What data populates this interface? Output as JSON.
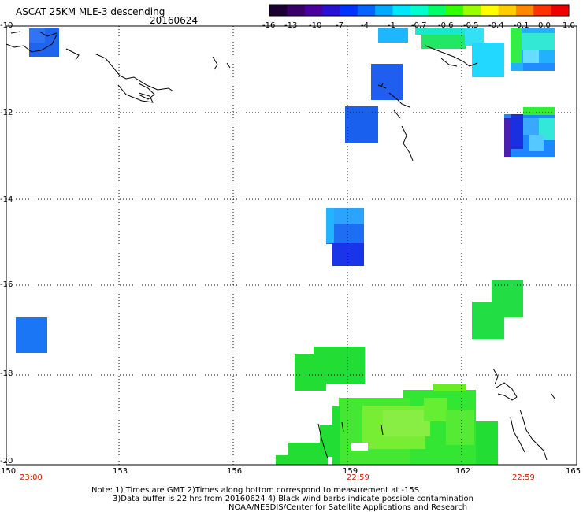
{
  "header": {
    "title": "ASCAT 25KM MLE-3 descending",
    "date": "20160624"
  },
  "colorbar": {
    "labels": [
      "-16",
      "-13",
      "-10",
      "-7",
      "-4",
      "-1",
      "-0.7",
      "-0.6",
      "-0.5",
      "-0.4",
      "-0.1",
      "0.0",
      "1.0"
    ],
    "colors": [
      "#1a0033",
      "#3a006a",
      "#4b00a0",
      "#2a10d0",
      "#0033ff",
      "#0066ff",
      "#00aaff",
      "#00e6ff",
      "#00ffcc",
      "#00ff66",
      "#33ff00",
      "#99ff00",
      "#ffff00",
      "#ffcc00",
      "#ff8800",
      "#ff3300",
      "#ee0000"
    ]
  },
  "map": {
    "lat_labels": [
      "-10",
      "-12",
      "-14",
      "-16",
      "-18",
      "-20"
    ],
    "lon_labels": [
      "150",
      "153",
      "156",
      "159",
      "162",
      "165"
    ],
    "time_labels": [
      "23:00",
      "22:59",
      "22:59"
    ]
  },
  "notes": {
    "line1": "Note: 1) Times are GMT 2)Times along bottom correspond to measurement at -15S",
    "line2": "3)Data buffer is 22 hrs from 20160624 4) Black wind barbs indicate possible contamination",
    "line3": "NOAA/NESDIS/Center for Satellite Applications and Research"
  }
}
